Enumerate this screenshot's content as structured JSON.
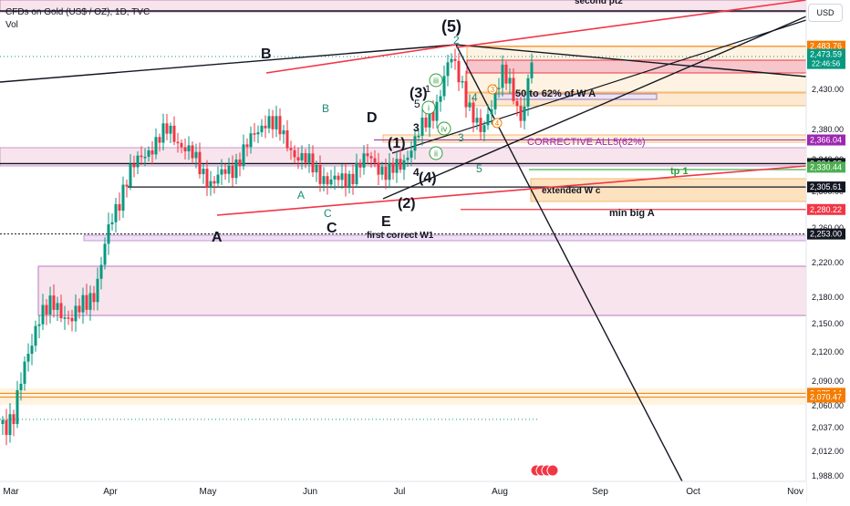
{
  "header": {
    "title": "CFDs on Gold (US$ / OZ), 1D, TVC",
    "volume_label": "Vol",
    "currency_button": "USD"
  },
  "colors": {
    "bull": "#089981",
    "bear": "#f23645",
    "wave": "#1b8a7a",
    "green_label": "#2e9e3a",
    "purple": "#9c27b0",
    "zone_pink": "#f8e4ec",
    "zone_orange": "#fde2bf"
  },
  "chart_data": {
    "type": "candlestick",
    "x_axis_labels": [
      "Mar",
      "Apr",
      "May",
      "Jun",
      "Jul",
      "Aug",
      "Sep",
      "Oct",
      "Nov"
    ],
    "y_axis_ticks": [
      1988.0,
      2012.0,
      2037.0,
      2060.0,
      2090.0,
      2120.0,
      2150.0,
      2180.0,
      2220.0,
      2260.0,
      2300.0,
      2340.0,
      2380.0,
      2430.0
    ],
    "y_axis_tick_labels": [
      "1,988.00",
      "2,012.00",
      "2,037.00",
      "2,060.00",
      "2,090.00",
      "2,120.00",
      "2,150.00",
      "2,180.00",
      "2,220.00",
      "2,260.00",
      "2,300.00",
      "2,340.00",
      "2,380.00",
      "2,430.00"
    ],
    "price_tags": [
      {
        "value": 2483.76,
        "label": "2,483.76",
        "color": "#f57c00"
      },
      {
        "value": 2473.59,
        "label": "2,473.59",
        "sub": "22:46:56",
        "color": "#089981"
      },
      {
        "value": 2366.04,
        "label": "2,366.04",
        "color": "#9c27b0"
      },
      {
        "value": 2334.95,
        "label": "2,334.95",
        "color": "#131722"
      },
      {
        "value": 2330.44,
        "label": "2,330.44",
        "color": "#4caf50"
      },
      {
        "value": 2305.61,
        "label": "2,305.61",
        "color": "#131722"
      },
      {
        "value": 2280.22,
        "label": "2,280.22",
        "color": "#f23645"
      },
      {
        "value": 2253.0,
        "label": "2,253.00",
        "color": "#131722"
      },
      {
        "value": 2075.14,
        "label": "2,075.14",
        "color": "#f57c00"
      },
      {
        "value": 2070.47,
        "label": "2,070.47",
        "color": "#f57c00"
      }
    ],
    "annotations": {
      "second_pt2": "second pt2",
      "fifty_sixtytwo": "50 to 62% of W A",
      "corrective": "CORRECTIVE ALL5(62%)",
      "tp1": "tp 1",
      "extended": "extended W c",
      "min_big_a": "min big A",
      "first_correct": "first correct W1"
    },
    "wave_labels": {
      "big_a": "A",
      "big_b": "B",
      "big_c": "C",
      "big_d": "D",
      "big_e": "E",
      "w5p": "(5)",
      "w3p": "(3)",
      "w1p": "(1)",
      "w2p": "(2)",
      "w4p": "(4)",
      "s_b": "B",
      "s_a": "A",
      "s_c": "C",
      "s2": "2",
      "s4": "4",
      "s5a": "5",
      "s3a": "3",
      "s1": "1",
      "s3b": "3",
      "s4b": "4",
      "s5b": "5",
      "r_iii": "iii",
      "r_i": "i",
      "r_iv": "iv",
      "r_ii": "ii",
      "o3": "3",
      "o4": "4"
    }
  }
}
